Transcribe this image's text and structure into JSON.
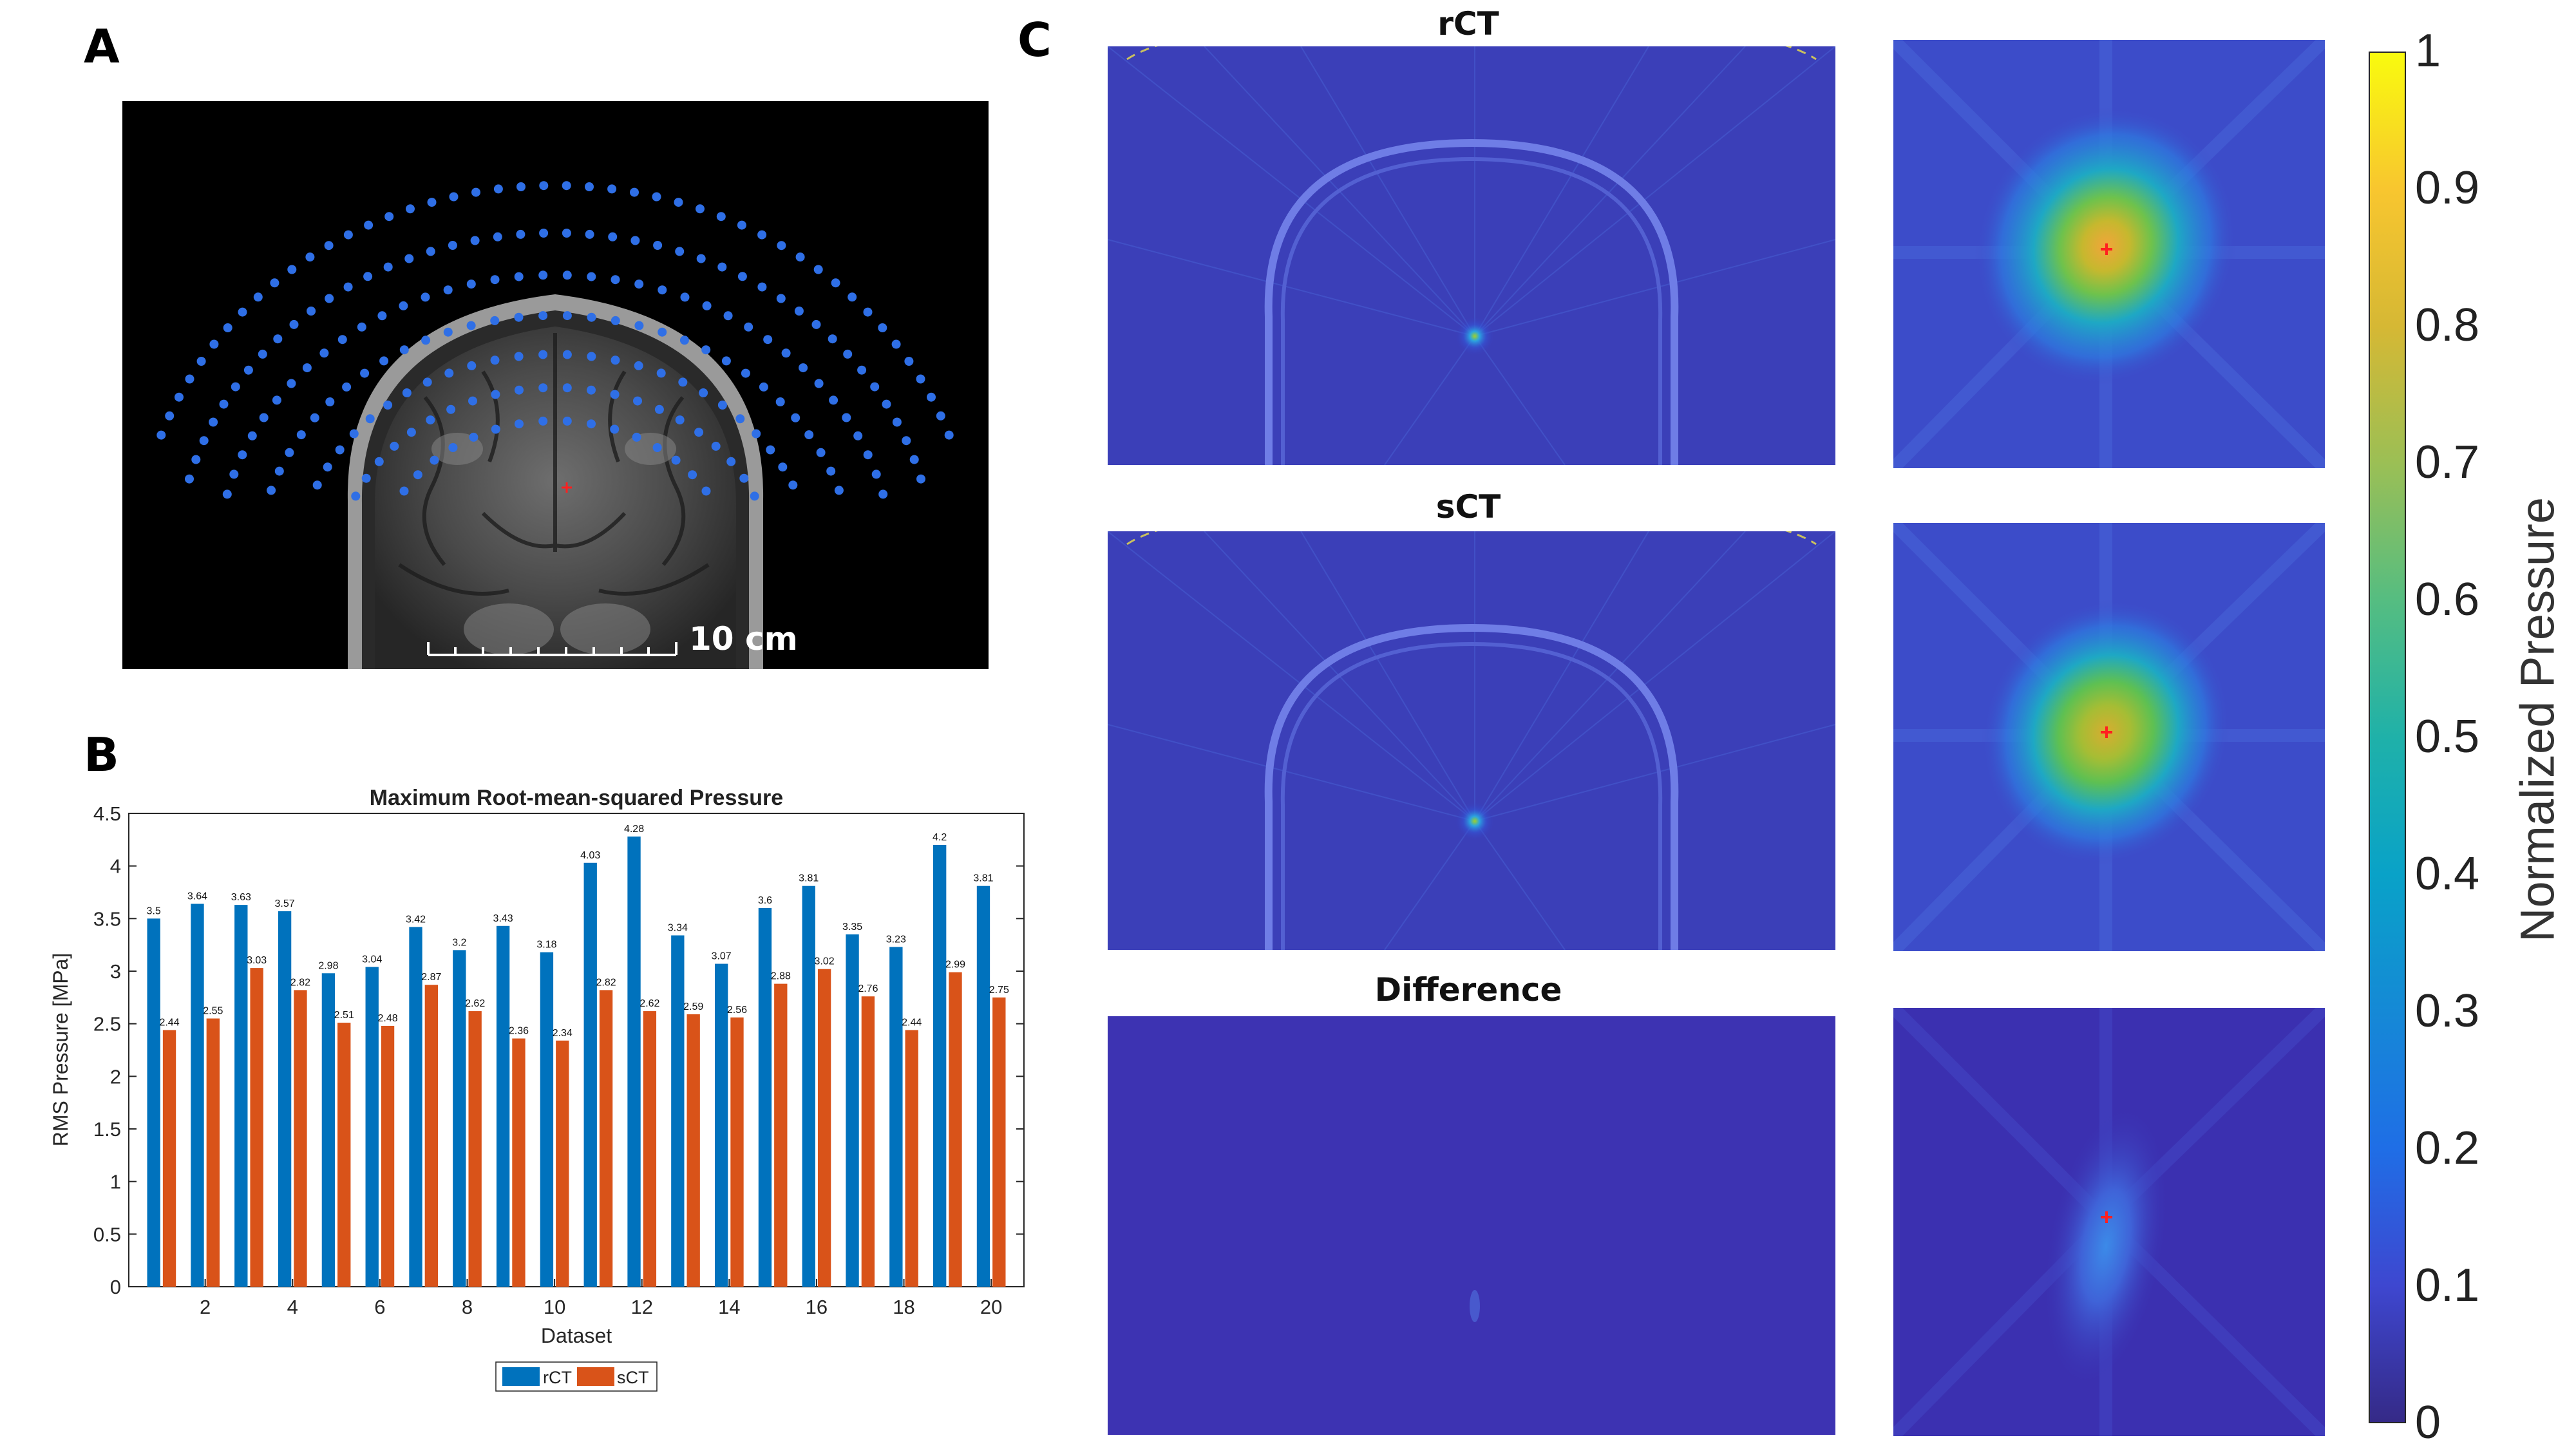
{
  "panels": {
    "a": "A",
    "b": "B",
    "c": "C"
  },
  "panel_a": {
    "scale_label": "10 cm"
  },
  "panel_c": {
    "titles": [
      "rCT",
      "sCT",
      "Difference"
    ],
    "colorbar": {
      "label": "Normalized Pressure",
      "ticks": [
        "0",
        "0.1",
        "0.2",
        "0.3",
        "0.4",
        "0.5",
        "0.6",
        "0.7",
        "0.8",
        "0.9",
        "1"
      ],
      "range": [
        0,
        1
      ],
      "colormap": "parula"
    }
  },
  "chart_data": {
    "type": "bar",
    "title": "Maximum Root-mean-squared Pressure",
    "xlabel": "Dataset",
    "ylabel": "RMS Pressure [MPa]",
    "ylim": [
      0,
      4.5
    ],
    "yticks": [
      "0",
      "0.5",
      "1",
      "1.5",
      "2",
      "2.5",
      "3",
      "3.5",
      "4",
      "4.5"
    ],
    "categories": [
      1,
      2,
      3,
      4,
      5,
      6,
      7,
      8,
      9,
      10,
      11,
      12,
      13,
      14,
      15,
      16,
      17,
      18,
      19,
      20
    ],
    "xtick_labels": [
      "2",
      "4",
      "6",
      "8",
      "10",
      "12",
      "14",
      "16",
      "18",
      "20"
    ],
    "legend_position": "bottom",
    "series": [
      {
        "name": "rCT",
        "color": "#0072BD",
        "values": [
          3.5,
          3.64,
          3.63,
          3.57,
          2.98,
          3.04,
          3.42,
          3.2,
          3.43,
          3.18,
          4.03,
          4.28,
          3.34,
          3.07,
          3.6,
          3.81,
          3.35,
          3.23,
          4.2,
          3.81
        ],
        "labels": [
          "3.5",
          "3.64",
          "3.63",
          "3.57",
          "2.98",
          "3.04",
          "3.42",
          "3.2",
          "3.43",
          "3.18",
          "4.03",
          "4.28",
          "3.34",
          "3.07",
          "3.6",
          "3.81",
          "3.35",
          "3.23",
          "4.2",
          "3.81"
        ]
      },
      {
        "name": "sCT",
        "color": "#D95319",
        "values": [
          2.44,
          2.55,
          3.03,
          2.82,
          2.51,
          2.48,
          2.87,
          2.62,
          2.36,
          2.34,
          2.82,
          2.62,
          2.59,
          2.56,
          2.88,
          3.02,
          2.76,
          2.44,
          2.99,
          2.75
        ],
        "labels": [
          "2.44",
          "2.55",
          "3.03",
          "2.82",
          "2.51",
          "2.48",
          "2.87",
          "2.62",
          "2.36",
          "2.34",
          "2.82",
          "2.62",
          "2.59",
          "2.56",
          "2.88",
          "3.02",
          "2.76",
          "2.44",
          "2.99",
          "2.75"
        ]
      }
    ]
  }
}
